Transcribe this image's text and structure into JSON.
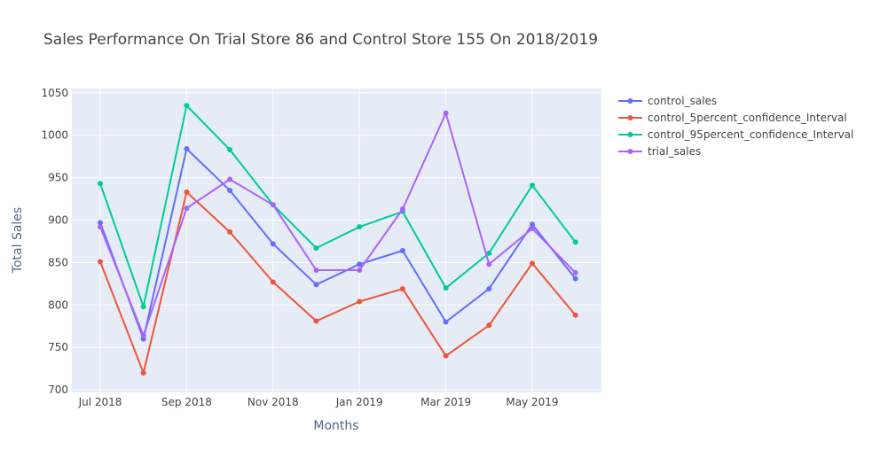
{
  "chart_data": {
    "type": "line",
    "title": "Sales Performance On Trial Store 86 and Control Store 155 On 2018/2019",
    "xlabel": "Months",
    "ylabel": "Total Sales",
    "x": [
      "2018-07",
      "2018-08",
      "2018-09",
      "2018-10",
      "2018-11",
      "2018-12",
      "2019-01",
      "2019-02",
      "2019-03",
      "2019-04",
      "2019-05",
      "2019-06"
    ],
    "x_tick_labels": [
      "Jul 2018",
      "Sep 2018",
      "Nov 2018",
      "Jan 2019",
      "Mar 2019",
      "May 2019"
    ],
    "y_ticks": [
      700,
      750,
      800,
      850,
      900,
      950,
      1000,
      1050
    ],
    "ylim": [
      697,
      1055
    ],
    "grid": true,
    "legend_position": "right",
    "series": [
      {
        "name": "control_sales",
        "color": "#636efa",
        "values": [
          897,
          760,
          984,
          935,
          872,
          824,
          848,
          864,
          780,
          819,
          895,
          831
        ]
      },
      {
        "name": "control_5percent_confidence_Interval",
        "color": "#ef553b",
        "values": [
          851,
          720,
          933,
          886,
          827,
          781,
          804,
          819,
          740,
          776,
          849,
          788
        ]
      },
      {
        "name": "control_95percent_confidence_Interval",
        "color": "#00cc96",
        "values": [
          943,
          798,
          1035,
          983,
          918,
          867,
          892,
          910,
          820,
          861,
          941,
          874
        ]
      },
      {
        "name": "trial_sales",
        "color": "#ab63fa",
        "values": [
          892,
          764,
          914,
          948,
          918,
          841,
          841,
          913,
          1026,
          848,
          890,
          838
        ]
      }
    ]
  }
}
